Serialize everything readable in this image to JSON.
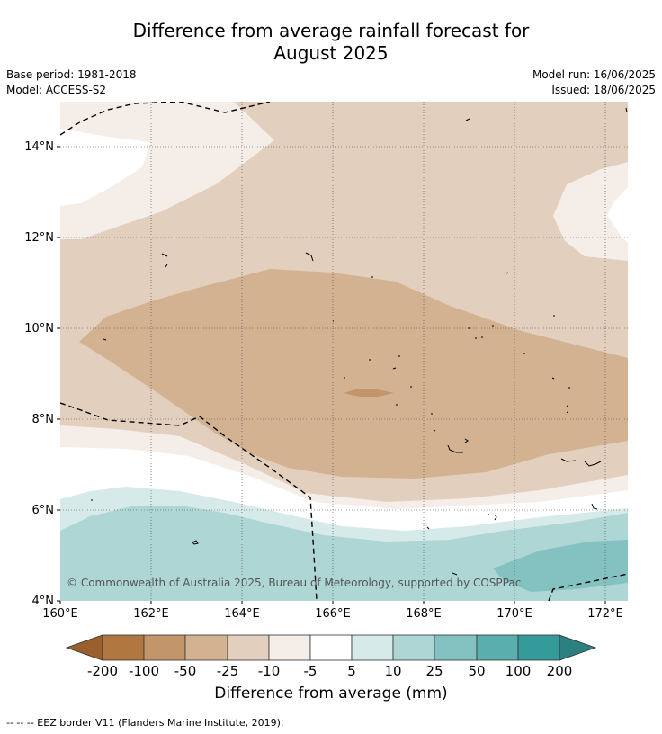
{
  "title_line1": "Difference from average rainfall forecast for",
  "title_line2": "August 2025",
  "base_period": "Base period: 1981-2018",
  "model": "Model: ACCESS-S2",
  "model_run": "Model run: 16/06/2025",
  "issued": "Issued: 18/06/2025",
  "lat_labels": [
    "14°N",
    "12°N",
    "10°N",
    "8°N",
    "6°N",
    "4°N"
  ],
  "lon_labels": [
    "160°E",
    "162°E",
    "164°E",
    "166°E",
    "168°E",
    "170°E",
    "172°E"
  ],
  "copyright": "© Commonwealth of Australia 2025, Bureau of Meteorology, supported by COSPPac",
  "colorbar": {
    "title": "Difference from average (mm)",
    "ticks": [
      "-200",
      "-100",
      "-50",
      "-25",
      "-10",
      "-5",
      "5",
      "10",
      "25",
      "50",
      "100",
      "200"
    ],
    "colors": [
      "#995f2d",
      "#b07840",
      "#c2956a",
      "#d3b292",
      "#e3cfbe",
      "#f5ede7",
      "#ffffff",
      "#d6ebe9",
      "#aed6d5",
      "#84c2c2",
      "#5aaeae",
      "#349a9a",
      "#2c8080"
    ]
  },
  "footnote": "--  --  -- EEZ border V11 (Flanders Marine Institute, 2019)."
}
